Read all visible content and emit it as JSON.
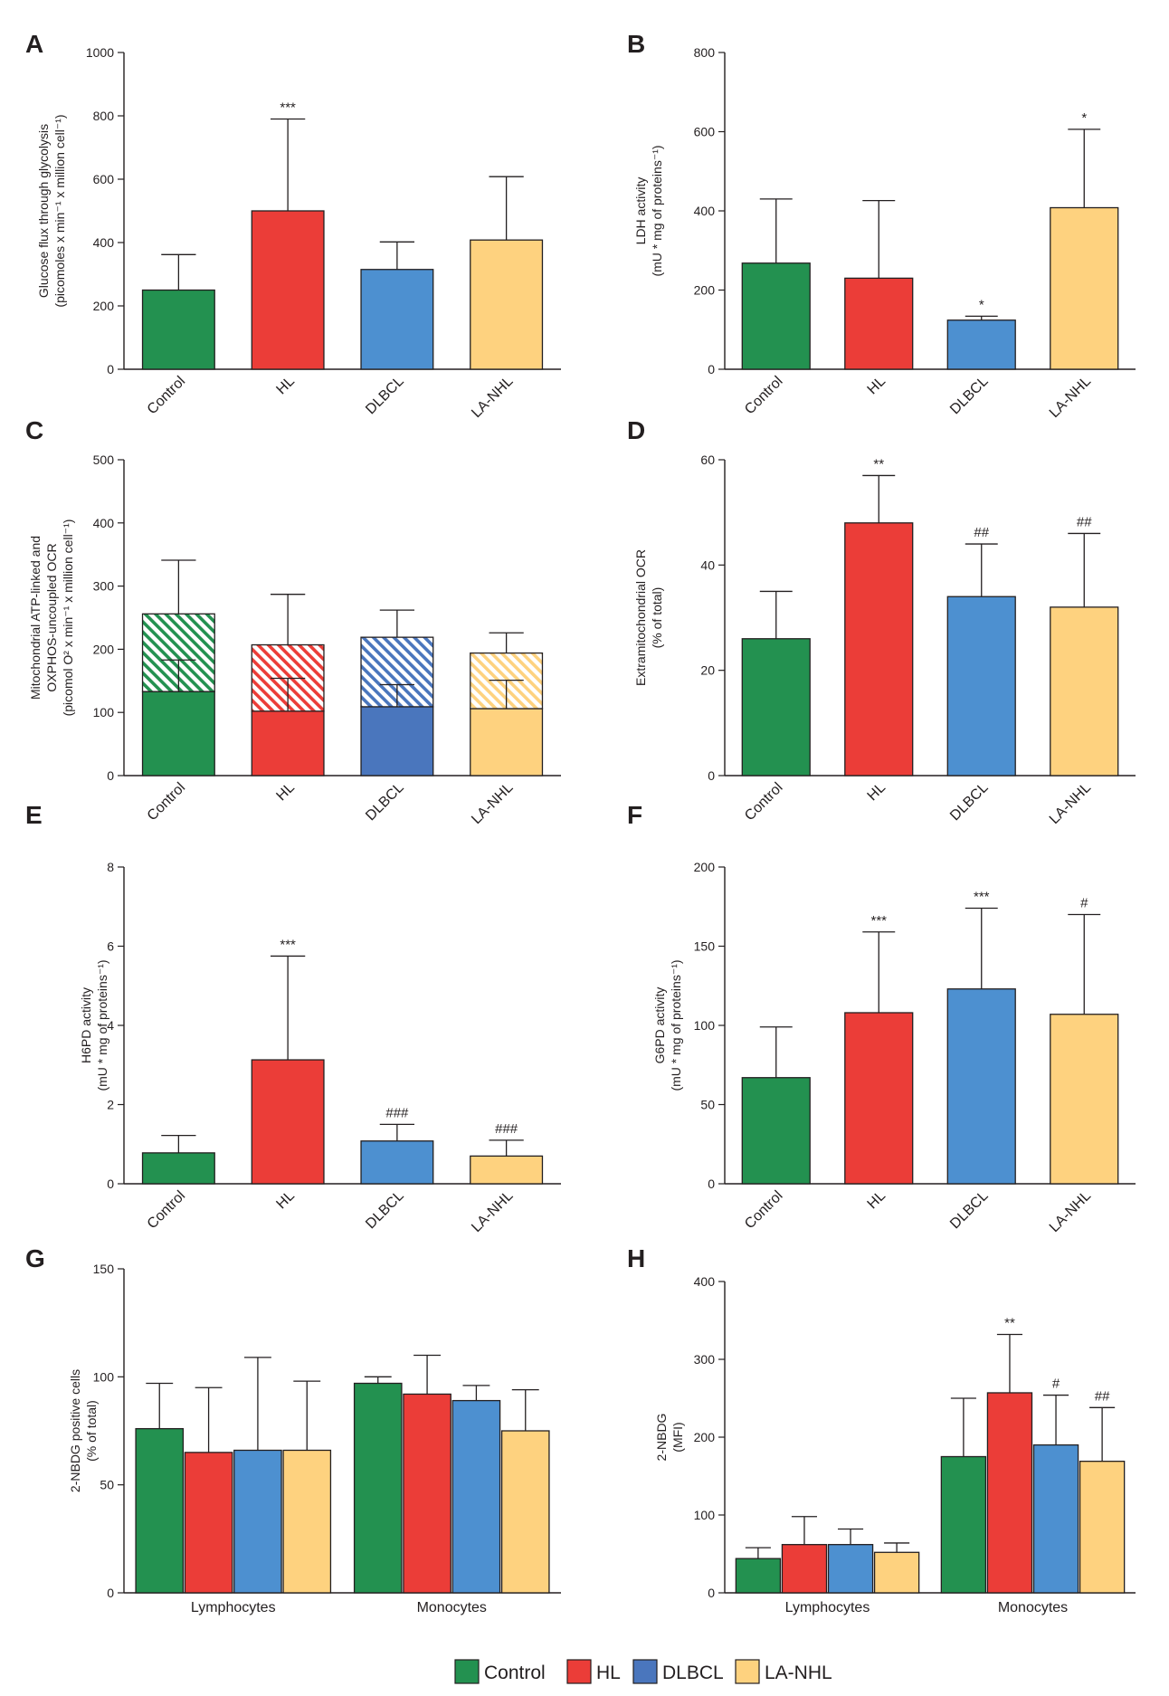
{
  "colors": {
    "control": "#239150",
    "hl": "#eb3d38",
    "dlbcl": "#4d90d0",
    "dlbcl_dark": "#4a76bd",
    "lanhl": "#fed27f",
    "axis": "#231f20"
  },
  "legend": {
    "items": [
      {
        "label": "Control",
        "color": "#239150"
      },
      {
        "label": "HL",
        "color": "#eb3d38"
      },
      {
        "label": "DLBCL",
        "color": "#4a76bd"
      },
      {
        "label": "LA-NHL",
        "color": "#fed27f"
      }
    ]
  },
  "chart_data": [
    {
      "panel": "A",
      "type": "bar",
      "ylabel": [
        "Glucose flux through glycolysis",
        "(picomoles x min⁻¹ x million cell⁻¹)"
      ],
      "ylim": [
        0,
        1000
      ],
      "ticks": [
        0,
        200,
        400,
        600,
        800,
        1000
      ],
      "categories": [
        "Control",
        "HL",
        "DLBCL",
        "LA-NHL"
      ],
      "values": [
        250,
        500,
        315,
        408
      ],
      "errors": [
        112,
        290,
        87,
        200
      ],
      "annotations": [
        "",
        "***",
        "",
        ""
      ],
      "colors": [
        "#239150",
        "#eb3d38",
        "#4d90d0",
        "#fed27f"
      ]
    },
    {
      "panel": "B",
      "type": "bar",
      "ylabel": [
        "LDH activity",
        "(mU * mg of proteins⁻¹)"
      ],
      "ylim": [
        0,
        800
      ],
      "ticks": [
        0,
        200,
        400,
        600,
        800
      ],
      "categories": [
        "Control",
        "HL",
        "DLBCL",
        "LA-NHL"
      ],
      "values": [
        268,
        230,
        124,
        408
      ],
      "errors": [
        162,
        196,
        10,
        198
      ],
      "annotations": [
        "",
        "",
        "*",
        "*"
      ],
      "colors": [
        "#239150",
        "#eb3d38",
        "#4d90d0",
        "#fed27f"
      ]
    },
    {
      "panel": "C",
      "type": "stacked-bar",
      "ylabel": [
        "Mitochondrial ATP-linked and",
        "OXPHOS-uncoupled  OCR",
        "(picomol O² x min⁻¹ x million cell⁻¹)"
      ],
      "ylim": [
        0,
        500
      ],
      "ticks": [
        0,
        100,
        200,
        300,
        400,
        500
      ],
      "categories": [
        "Control",
        "HL",
        "DLBCL",
        "LA-NHL"
      ],
      "series": [
        {
          "name": "ATP-linked",
          "values": [
            133,
            102,
            109,
            106
          ],
          "errors": [
            50,
            52,
            35,
            45
          ]
        },
        {
          "name": "OXPHOS-uncoupled",
          "values": [
            123,
            105,
            110,
            88
          ],
          "errors": [
            85,
            80,
            43,
            32
          ]
        }
      ],
      "colors": [
        "#239150",
        "#eb3d38",
        "#4a76bd",
        "#fed27f"
      ]
    },
    {
      "panel": "D",
      "type": "bar",
      "ylabel": [
        "Extramitochondrial OCR",
        "(% of total)"
      ],
      "ylim": [
        0,
        60
      ],
      "ticks": [
        0,
        20,
        40,
        60
      ],
      "categories": [
        "Control",
        "HL",
        "DLBCL",
        "LA-NHL"
      ],
      "values": [
        26,
        48,
        34,
        32
      ],
      "errors": [
        9,
        9,
        10,
        14
      ],
      "annotations": [
        "",
        "**",
        "##",
        "##"
      ],
      "colors": [
        "#239150",
        "#eb3d38",
        "#4d90d0",
        "#fed27f"
      ]
    },
    {
      "panel": "E",
      "type": "bar",
      "ylabel": [
        "H6PD activity",
        "(mU * mg of proteins⁻¹)"
      ],
      "ylim": [
        0,
        8
      ],
      "ticks": [
        0,
        2,
        4,
        6,
        8
      ],
      "categories": [
        "Control",
        "HL",
        "DLBCL",
        "LA-NHL"
      ],
      "values": [
        0.78,
        3.13,
        1.08,
        0.7
      ],
      "errors": [
        0.44,
        2.62,
        0.42,
        0.4
      ],
      "annotations": [
        "",
        "***",
        "###",
        "###"
      ],
      "colors": [
        "#239150",
        "#eb3d38",
        "#4d90d0",
        "#fed27f"
      ]
    },
    {
      "panel": "F",
      "type": "bar",
      "ylabel": [
        "G6PD activity",
        "(mU * mg of proteins⁻¹)"
      ],
      "ylim": [
        0,
        200
      ],
      "ticks": [
        0,
        50,
        100,
        150,
        200
      ],
      "categories": [
        "Control",
        "HL",
        "DLBCL",
        "LA-NHL"
      ],
      "values": [
        67,
        108,
        123,
        107
      ],
      "errors": [
        32,
        51,
        51,
        63
      ],
      "annotations": [
        "",
        "***",
        "***",
        "#"
      ],
      "colors": [
        "#239150",
        "#eb3d38",
        "#4d90d0",
        "#fed27f"
      ]
    },
    {
      "panel": "G",
      "type": "grouped-bar",
      "ylabel": [
        "2-NBDG positive cells",
        "(% of total)"
      ],
      "ylim": [
        0,
        150
      ],
      "ticks": [
        0,
        50,
        100,
        150
      ],
      "groups": [
        "Lymphocytes",
        "Monocytes"
      ],
      "series": [
        {
          "name": "Control",
          "values": [
            76,
            97
          ],
          "errors": [
            21,
            3
          ],
          "annotations": [
            "",
            ""
          ]
        },
        {
          "name": "HL",
          "values": [
            65,
            92
          ],
          "errors": [
            30,
            18
          ],
          "annotations": [
            "",
            ""
          ]
        },
        {
          "name": "DLBCL",
          "values": [
            66,
            89
          ],
          "errors": [
            43,
            7
          ],
          "annotations": [
            "",
            ""
          ]
        },
        {
          "name": "LA-NHL",
          "values": [
            66,
            75
          ],
          "errors": [
            32,
            19
          ],
          "annotations": [
            "",
            ""
          ]
        }
      ],
      "colors": [
        "#239150",
        "#eb3d38",
        "#4d90d0",
        "#fed27f"
      ]
    },
    {
      "panel": "H",
      "type": "grouped-bar",
      "ylabel": [
        "2-NBDG",
        "(MFI)"
      ],
      "ylim": [
        0,
        400
      ],
      "ticks": [
        0,
        100,
        200,
        300,
        400
      ],
      "groups": [
        "Lymphocytes",
        "Monocytes"
      ],
      "series": [
        {
          "name": "Control",
          "values": [
            44,
            175
          ],
          "errors": [
            14,
            75
          ],
          "annotations": [
            "",
            ""
          ]
        },
        {
          "name": "HL",
          "values": [
            62,
            257
          ],
          "errors": [
            36,
            75
          ],
          "annotations": [
            "",
            "**"
          ]
        },
        {
          "name": "DLBCL",
          "values": [
            62,
            190
          ],
          "errors": [
            20,
            64
          ],
          "annotations": [
            "",
            "#"
          ]
        },
        {
          "name": "LA-NHL",
          "values": [
            52,
            169
          ],
          "errors": [
            12,
            69
          ],
          "annotations": [
            "",
            "##"
          ]
        }
      ],
      "colors": [
        "#239150",
        "#eb3d38",
        "#4d90d0",
        "#fed27f"
      ]
    }
  ]
}
